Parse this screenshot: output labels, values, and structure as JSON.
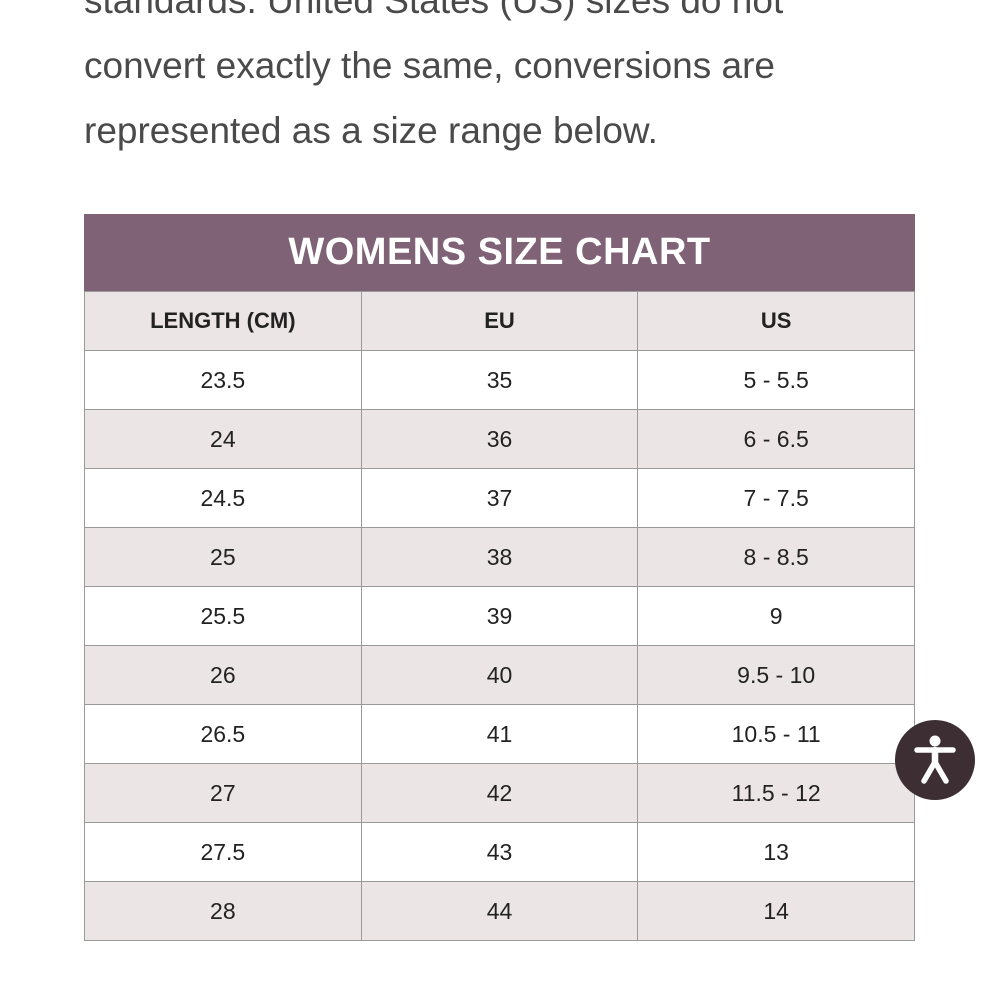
{
  "intro": {
    "lines": [
      "standards.  United States (US) sizes do not",
      "convert exactly the same, conversions are",
      "represented as a size range below."
    ]
  },
  "size_chart": {
    "title": "WOMENS SIZE CHART",
    "columns": [
      "LENGTH (CM)",
      "EU",
      "US"
    ],
    "rows": [
      [
        "23.5",
        "35",
        "5 - 5.5"
      ],
      [
        "24",
        "36",
        "6 - 6.5"
      ],
      [
        "24.5",
        "37",
        "7 - 7.5"
      ],
      [
        "25",
        "38",
        "8 - 8.5"
      ],
      [
        "25.5",
        "39",
        "9"
      ],
      [
        "26",
        "40",
        "9.5 - 10"
      ],
      [
        "26.5",
        "41",
        "10.5 - 11"
      ],
      [
        "27",
        "42",
        "11.5 - 12"
      ],
      [
        "27.5",
        "43",
        "13"
      ],
      [
        "28",
        "44",
        "14"
      ]
    ]
  },
  "accessibility_widget": {
    "icon": "accessibility-person-icon"
  },
  "colors": {
    "header_band": "#7f6275",
    "row_alt": "#ebe6e5",
    "widget_bg": "#3c2e33"
  }
}
